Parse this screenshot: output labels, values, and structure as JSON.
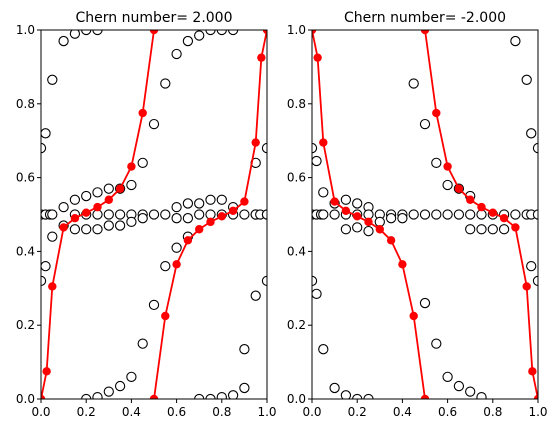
{
  "chart_data": [
    {
      "type": "scatter",
      "title": "Chern number= 2.000",
      "xlim": [
        0,
        1
      ],
      "ylim": [
        0,
        1
      ],
      "xticks": [
        "0.0",
        "0.2",
        "0.4",
        "0.6",
        "0.8",
        "1.0"
      ],
      "yticks": [
        "0.0",
        "0.2",
        "0.4",
        "0.6",
        "0.8",
        "1.0"
      ],
      "grid": false,
      "series": [
        {
          "style": "open-circle",
          "color": "#000000",
          "points": [
            [
              0.0,
              0.68
            ],
            [
              0.0,
              0.32
            ],
            [
              0.0,
              0.5
            ],
            [
              0.02,
              0.72
            ],
            [
              0.02,
              0.36
            ],
            [
              0.02,
              0.5
            ],
            [
              0.04,
              0.5
            ],
            [
              0.05,
              0.865
            ],
            [
              0.05,
              0.44
            ],
            [
              0.05,
              0.5
            ],
            [
              0.1,
              0.97
            ],
            [
              0.1,
              0.52
            ],
            [
              0.1,
              0.47
            ],
            [
              0.15,
              0.99
            ],
            [
              0.15,
              0.54
            ],
            [
              0.15,
              0.46
            ],
            [
              0.15,
              0.5
            ],
            [
              0.2,
              1.0
            ],
            [
              0.2,
              0.55
            ],
            [
              0.2,
              0.5
            ],
            [
              0.2,
              0.46
            ],
            [
              0.25,
              1.0
            ],
            [
              0.25,
              0.56
            ],
            [
              0.25,
              0.5
            ],
            [
              0.25,
              0.46
            ],
            [
              0.3,
              0.57
            ],
            [
              0.3,
              0.5
            ],
            [
              0.3,
              0.47
            ],
            [
              0.35,
              0.57
            ],
            [
              0.35,
              0.5
            ],
            [
              0.35,
              0.47
            ],
            [
              0.4,
              0.58
            ],
            [
              0.4,
              0.5
            ],
            [
              0.4,
              0.48
            ],
            [
              0.45,
              0.64
            ],
            [
              0.45,
              0.5
            ],
            [
              0.45,
              0.49
            ],
            [
              0.5,
              0.745
            ],
            [
              0.5,
              0.5
            ],
            [
              0.5,
              0.255
            ],
            [
              0.55,
              0.855
            ],
            [
              0.55,
              0.5
            ],
            [
              0.55,
              0.36
            ],
            [
              0.6,
              0.935
            ],
            [
              0.6,
              0.52
            ],
            [
              0.6,
              0.49
            ],
            [
              0.6,
              0.41
            ],
            [
              0.65,
              0.97
            ],
            [
              0.65,
              0.53
            ],
            [
              0.65,
              0.49
            ],
            [
              0.65,
              0.44
            ],
            [
              0.7,
              0.985
            ],
            [
              0.7,
              0.53
            ],
            [
              0.7,
              0.5
            ],
            [
              0.75,
              1.0
            ],
            [
              0.75,
              0.54
            ],
            [
              0.75,
              0.5
            ],
            [
              0.8,
              1.0
            ],
            [
              0.8,
              0.54
            ],
            [
              0.8,
              0.5
            ],
            [
              0.85,
              1.0
            ],
            [
              0.85,
              0.52
            ],
            [
              0.85,
              0.5
            ],
            [
              0.9,
              0.5
            ],
            [
              0.9,
              0.135
            ],
            [
              0.95,
              0.5
            ],
            [
              0.95,
              0.28
            ],
            [
              0.95,
              0.64
            ],
            [
              0.95,
              0.5
            ],
            [
              0.97,
              0.5
            ],
            [
              1.0,
              0.68
            ],
            [
              1.0,
              0.5
            ],
            [
              1.0,
              0.32
            ],
            [
              1.0,
              0.5
            ],
            [
              0.2,
              0.0
            ],
            [
              0.25,
              0.005
            ],
            [
              0.3,
              0.02
            ],
            [
              0.35,
              0.035
            ],
            [
              0.4,
              0.06
            ],
            [
              0.45,
              0.15
            ],
            [
              0.7,
              0.0
            ],
            [
              0.75,
              0.0
            ],
            [
              0.8,
              0.005
            ],
            [
              0.85,
              0.01
            ],
            [
              0.9,
              0.03
            ]
          ]
        },
        {
          "style": "red-line-marker",
          "color": "#ff0000",
          "segments": [
            [
              [
                0.0,
                0.0
              ],
              [
                0.025,
                0.075
              ],
              [
                0.05,
                0.305
              ],
              [
                0.1,
                0.465
              ],
              [
                0.15,
                0.49
              ],
              [
                0.2,
                0.505
              ],
              [
                0.25,
                0.52
              ],
              [
                0.3,
                0.54
              ],
              [
                0.35,
                0.57
              ],
              [
                0.4,
                0.63
              ],
              [
                0.45,
                0.775
              ],
              [
                0.5,
                1.0
              ]
            ],
            [
              [
                0.5,
                0.0
              ],
              [
                0.55,
                0.225
              ],
              [
                0.6,
                0.365
              ],
              [
                0.65,
                0.43
              ],
              [
                0.7,
                0.46
              ],
              [
                0.75,
                0.48
              ],
              [
                0.8,
                0.495
              ],
              [
                0.85,
                0.51
              ],
              [
                0.9,
                0.535
              ],
              [
                0.95,
                0.695
              ],
              [
                0.975,
                0.925
              ],
              [
                1.0,
                1.0
              ]
            ]
          ]
        }
      ]
    },
    {
      "type": "scatter",
      "title": "Chern number= -2.000",
      "xlim": [
        0,
        1
      ],
      "ylim": [
        0,
        1
      ],
      "xticks": [
        "0.0",
        "0.2",
        "0.4",
        "0.6",
        "0.8",
        "1.0"
      ],
      "yticks": [
        "0.0",
        "0.2",
        "0.4",
        "0.6",
        "0.8",
        "1.0"
      ],
      "grid": false,
      "series": [
        {
          "style": "open-circle",
          "color": "#000000",
          "points": [
            [
              0.0,
              0.68
            ],
            [
              0.0,
              0.32
            ],
            [
              0.0,
              0.5
            ],
            [
              0.02,
              0.645
            ],
            [
              0.02,
              0.285
            ],
            [
              0.02,
              0.5
            ],
            [
              0.04,
              0.5
            ],
            [
              0.05,
              0.56
            ],
            [
              0.05,
              0.135
            ],
            [
              0.05,
              0.5
            ],
            [
              0.1,
              0.53
            ],
            [
              0.1,
              0.5
            ],
            [
              0.1,
              0.03
            ],
            [
              0.15,
              0.54
            ],
            [
              0.15,
              0.5
            ],
            [
              0.15,
              0.46
            ],
            [
              0.15,
              0.01
            ],
            [
              0.2,
              0.53
            ],
            [
              0.2,
              0.5
            ],
            [
              0.2,
              0.465
            ],
            [
              0.2,
              0.0
            ],
            [
              0.25,
              0.52
            ],
            [
              0.25,
              0.5
            ],
            [
              0.25,
              0.455
            ],
            [
              0.25,
              0.0
            ],
            [
              0.3,
              0.5
            ],
            [
              0.3,
              0.48
            ],
            [
              0.35,
              0.5
            ],
            [
              0.35,
              0.49
            ],
            [
              0.4,
              0.5
            ],
            [
              0.4,
              0.49
            ],
            [
              0.45,
              0.5
            ],
            [
              0.45,
              0.855
            ],
            [
              0.5,
              0.5
            ],
            [
              0.5,
              0.26
            ],
            [
              0.5,
              0.745
            ],
            [
              0.55,
              0.64
            ],
            [
              0.55,
              0.5
            ],
            [
              0.55,
              0.15
            ],
            [
              0.6,
              0.58
            ],
            [
              0.6,
              0.5
            ],
            [
              0.6,
              0.06
            ],
            [
              0.65,
              0.57
            ],
            [
              0.65,
              0.5
            ],
            [
              0.65,
              0.035
            ],
            [
              0.7,
              0.55
            ],
            [
              0.7,
              0.5
            ],
            [
              0.7,
              0.46
            ],
            [
              0.7,
              0.02
            ],
            [
              0.75,
              0.5
            ],
            [
              0.75,
              0.46
            ],
            [
              0.75,
              0.005
            ],
            [
              0.8,
              0.5
            ],
            [
              0.8,
              0.46
            ],
            [
              0.85,
              0.5
            ],
            [
              0.85,
              0.46
            ],
            [
              0.9,
              0.5
            ],
            [
              0.9,
              0.97
            ],
            [
              0.95,
              0.5
            ],
            [
              0.95,
              0.865
            ],
            [
              0.97,
              0.72
            ],
            [
              0.97,
              0.5
            ],
            [
              0.97,
              0.36
            ],
            [
              1.0,
              0.68
            ],
            [
              1.0,
              0.5
            ],
            [
              1.0,
              0.32
            ]
          ]
        },
        {
          "style": "red-line-marker",
          "color": "#ff0000",
          "segments": [
            [
              [
                0.0,
                1.0
              ],
              [
                0.025,
                0.925
              ],
              [
                0.05,
                0.695
              ],
              [
                0.1,
                0.535
              ],
              [
                0.15,
                0.51
              ],
              [
                0.2,
                0.495
              ],
              [
                0.25,
                0.48
              ],
              [
                0.3,
                0.46
              ],
              [
                0.35,
                0.43
              ],
              [
                0.4,
                0.365
              ],
              [
                0.45,
                0.225
              ],
              [
                0.5,
                0.0
              ]
            ],
            [
              [
                0.5,
                1.0
              ],
              [
                0.55,
                0.775
              ],
              [
                0.6,
                0.63
              ],
              [
                0.65,
                0.57
              ],
              [
                0.7,
                0.54
              ],
              [
                0.75,
                0.52
              ],
              [
                0.8,
                0.505
              ],
              [
                0.85,
                0.49
              ],
              [
                0.9,
                0.465
              ],
              [
                0.95,
                0.305
              ],
              [
                0.975,
                0.075
              ],
              [
                1.0,
                0.0
              ]
            ]
          ]
        }
      ]
    }
  ]
}
